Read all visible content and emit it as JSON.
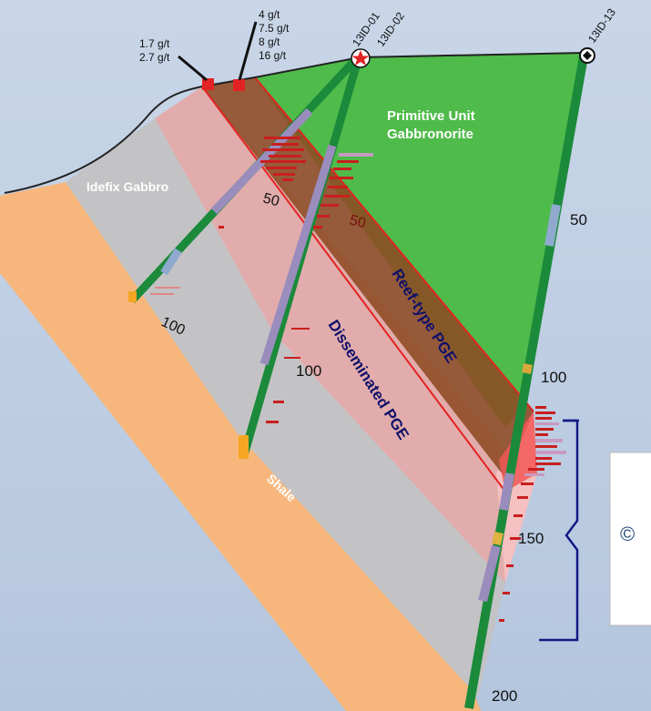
{
  "units": {
    "idefix": "Idefix Gabbro",
    "primitive_line1": "Primitive Unit",
    "primitive_line2": "Gabbronorite",
    "shale": "Shale",
    "reef": "Reef-type PGE",
    "disseminated": "Disseminated PGE"
  },
  "holes": {
    "h01": "13ID-01",
    "h02": "13ID-02",
    "h13": "13ID-13"
  },
  "grades_left": [
    "1.7 g/t",
    "2.7 g/t"
  ],
  "grades_right": [
    "4 g/t",
    "7.5 g/t",
    "8 g/t",
    "16 g/t"
  ],
  "depths": {
    "d50_a": "50",
    "d50_b": "50",
    "d50_c": "50",
    "d100_a": "100",
    "d100_b": "100",
    "d100_c": "100",
    "d150": "150",
    "d200": "200"
  },
  "inset_glyph": "©",
  "colors": {
    "green": "#4fbb4a",
    "brown": "#8e4a22",
    "pink": "#e1acab",
    "grey": "#c3c3c5",
    "orange": "#f7b77c",
    "red": "#e32323",
    "navy": "#121a85"
  }
}
